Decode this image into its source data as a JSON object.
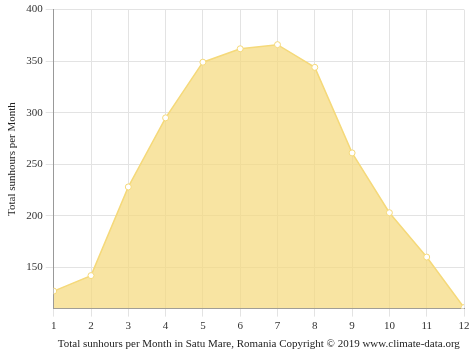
{
  "chart_data": {
    "type": "area",
    "x_label": "Total sunhours per Month in Satu Mare, Romania Copyright © 2019 www.climate-data.org",
    "y_label": "Total sunhours per Month",
    "x": [
      1,
      2,
      3,
      4,
      5,
      6,
      7,
      8,
      9,
      10,
      11,
      12
    ],
    "values": [
      127,
      142,
      228,
      295,
      349,
      362,
      366,
      344,
      261,
      203,
      160,
      111
    ],
    "color": "#f5d97a",
    "marker": "circle",
    "xlim": [
      1,
      12
    ],
    "xticks": [
      1,
      2,
      3,
      4,
      5,
      6,
      7,
      8,
      9,
      10,
      11,
      12
    ],
    "ylim": [
      110,
      400
    ],
    "yticks": [
      150,
      200,
      250,
      300,
      350,
      400
    ],
    "grid": true
  }
}
